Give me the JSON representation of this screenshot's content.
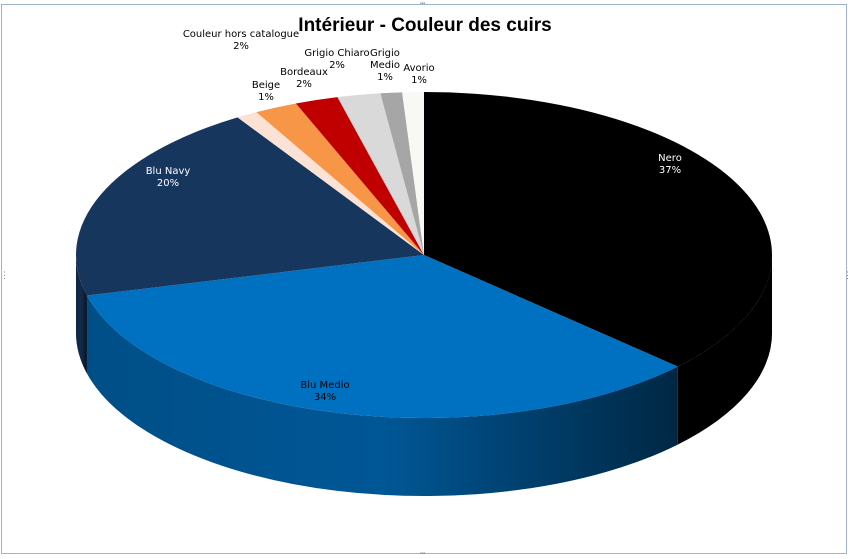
{
  "chart_data": {
    "type": "pie",
    "title": "Intérieur - Couleur des cuirs",
    "three_d": true,
    "legend": "none",
    "slices": [
      {
        "label": "Nero",
        "value": 37,
        "percent_label": "37%",
        "color": "#000000",
        "label_color": "#ffffff"
      },
      {
        "label": "Blu Medio",
        "value": 34,
        "percent_label": "34%",
        "color": "#0070c0",
        "label_color": "#000000"
      },
      {
        "label": "Blu Navy",
        "value": 20,
        "percent_label": "20%",
        "color": "#17365d",
        "label_color": "#ffffff"
      },
      {
        "label": "Beige",
        "value": 1,
        "percent_label": "1%",
        "color": "#fbe2d5",
        "label_color": "#000000"
      },
      {
        "label": "Couleur hors catalogue",
        "value": 2,
        "percent_label": "2%",
        "color": "#f79646",
        "label_color": "#000000"
      },
      {
        "label": "Bordeaux",
        "value": 2,
        "percent_label": "2%",
        "color": "#c00000",
        "label_color": "#000000"
      },
      {
        "label": "Grigio Chiaro",
        "value": 2,
        "percent_label": "2%",
        "color": "#d9d9d9",
        "label_color": "#000000"
      },
      {
        "label": "Grigio Medio",
        "value": 1,
        "percent_label": "1%",
        "color": "#a6a6a6",
        "label_color": "#000000"
      },
      {
        "label": "Avorio",
        "value": 1,
        "percent_label": "1%",
        "color": "#f8f8f4",
        "label_color": "#000000"
      }
    ]
  }
}
